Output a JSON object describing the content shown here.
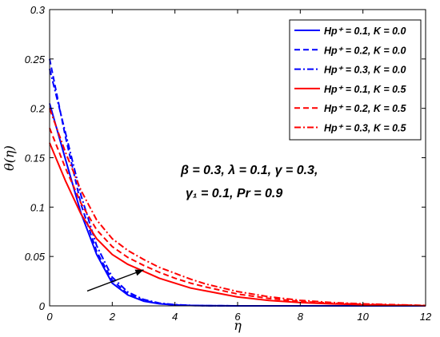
{
  "chart_data": {
    "type": "line",
    "xlabel": "η",
    "ylabel": "θ(η)",
    "xlim": [
      0,
      12
    ],
    "ylim": [
      0,
      0.3
    ],
    "x_ticks": [
      0,
      2,
      4,
      6,
      8,
      10,
      12
    ],
    "y_ticks": [
      0,
      0.05,
      0.1,
      0.15,
      0.2,
      0.25,
      0.3
    ],
    "x_tick_labels": [
      "0",
      "2",
      "4",
      "6",
      "8",
      "10",
      "12"
    ],
    "y_tick_labels": [
      "0",
      "0.05",
      "0.1",
      "0.15",
      "0.2",
      "0.25",
      "0.3"
    ],
    "legend_position": "top-right",
    "grid": false,
    "annotation_lines": [
      "β = 0.3, λ = 0.1, γ = 0.3,",
      "γ₁ = 0.1, Pr = 0.9"
    ],
    "arrow": {
      "from": [
        1.2,
        0.015
      ],
      "to": [
        3.0,
        0.0365
      ]
    },
    "x": [
      0,
      0.5,
      1,
      1.5,
      2,
      2.5,
      3,
      3.5,
      4,
      4.5,
      5,
      6,
      7,
      8,
      9,
      10,
      11,
      12
    ],
    "series": [
      {
        "name": "Hp⁺ = 0.1, K = 0.0",
        "color": "#0000ff",
        "dash": "solid",
        "values": [
          0.205,
          0.149,
          0.094,
          0.052,
          0.023,
          0.011,
          0.0048,
          0.0021,
          0.0009,
          0.0004,
          0.0002,
          0,
          0,
          0,
          0,
          0,
          0,
          0
        ]
      },
      {
        "name": "Hp⁺ = 0.2, K = 0.0",
        "color": "#0000ff",
        "dash": "dash",
        "values": [
          0.25,
          0.172,
          0.103,
          0.055,
          0.026,
          0.012,
          0.0055,
          0.0024,
          0.001,
          0.0004,
          0.0002,
          0,
          0,
          0,
          0,
          0,
          0,
          0
        ]
      },
      {
        "name": "Hp⁺ = 0.3, K = 0.0",
        "color": "#0000ff",
        "dash": "dashdot",
        "values": [
          0.24,
          0.176,
          0.112,
          0.061,
          0.029,
          0.014,
          0.0065,
          0.0028,
          0.0012,
          0.0005,
          0.0002,
          0,
          0,
          0,
          0,
          0,
          0,
          0
        ]
      },
      {
        "name": "Hp⁺ = 0.1, K = 0.5",
        "color": "#ff0000",
        "dash": "solid",
        "values": [
          0.165,
          0.127,
          0.093,
          0.068,
          0.052,
          0.042,
          0.035,
          0.028,
          0.023,
          0.018,
          0.015,
          0.009,
          0.0055,
          0.0033,
          0.002,
          0.0012,
          0.0007,
          0.0002
        ]
      },
      {
        "name": "Hp⁺ = 0.2, K = 0.5",
        "color": "#ff0000",
        "dash": "dash",
        "values": [
          0.18,
          0.14,
          0.104,
          0.077,
          0.06,
          0.049,
          0.041,
          0.034,
          0.028,
          0.023,
          0.019,
          0.012,
          0.0075,
          0.0045,
          0.0027,
          0.0016,
          0.0009,
          0.0003
        ]
      },
      {
        "name": "Hp⁺ = 0.3, K = 0.5",
        "color": "#ff0000",
        "dash": "dashdot",
        "values": [
          0.2,
          0.156,
          0.117,
          0.087,
          0.068,
          0.056,
          0.047,
          0.039,
          0.033,
          0.027,
          0.022,
          0.0145,
          0.0092,
          0.0056,
          0.0034,
          0.002,
          0.0012,
          0.0004
        ]
      }
    ]
  }
}
